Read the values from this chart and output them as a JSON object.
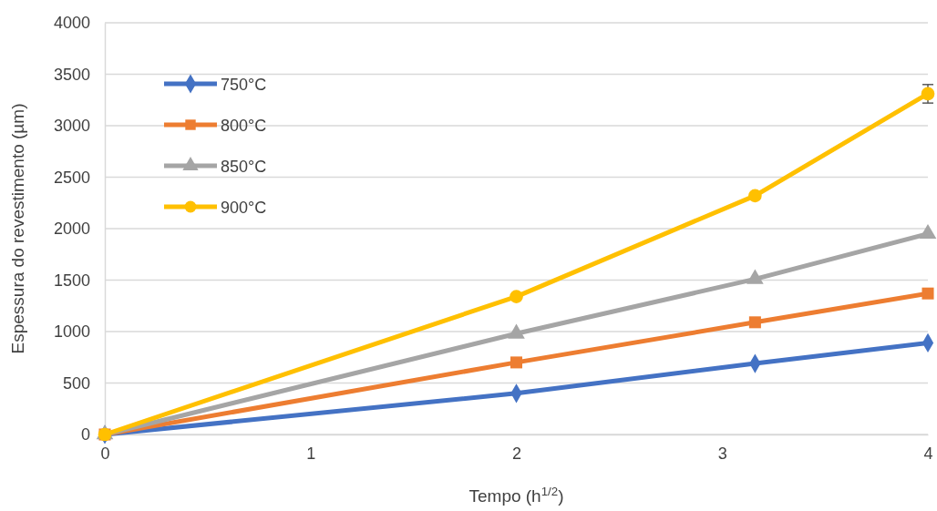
{
  "chart_data": {
    "type": "line",
    "xlabel": "Tempo (h$^{1/2}$)",
    "ylabel": "Espessura do revestimento (µm)",
    "x": [
      0,
      2,
      3.16,
      4
    ],
    "xlim": [
      0,
      4
    ],
    "xticks": [
      0,
      1,
      2,
      3,
      4
    ],
    "ylim": [
      0,
      4000
    ],
    "yticks": [
      0,
      500,
      1000,
      1500,
      2000,
      2500,
      3000,
      3500,
      4000
    ],
    "grid": "y",
    "legend": "top left",
    "series": [
      {
        "name": "750°C",
        "color": "#4472c4",
        "marker": "diamond",
        "values": [
          0,
          400,
          690,
          890
        ]
      },
      {
        "name": "800°C",
        "color": "#ed7d31",
        "marker": "square",
        "values": [
          0,
          700,
          1090,
          1370
        ]
      },
      {
        "name": "850°C",
        "color": "#a5a5a5",
        "marker": "triangle",
        "values": [
          0,
          980,
          1510,
          1950
        ]
      },
      {
        "name": "900°C",
        "color": "#ffc000",
        "marker": "circle",
        "values": [
          0,
          1340,
          2320,
          3310
        ],
        "errors": [
          null,
          null,
          null,
          90
        ]
      }
    ]
  }
}
